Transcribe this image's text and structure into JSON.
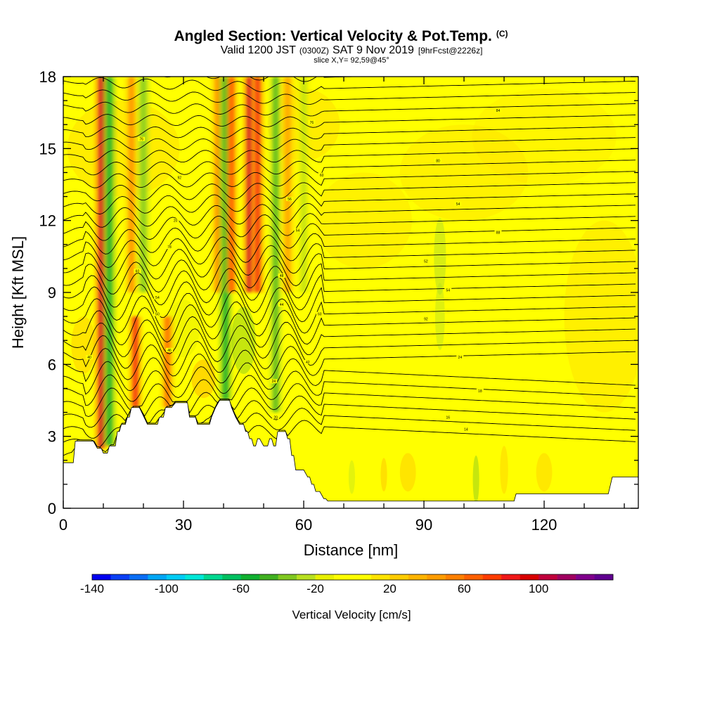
{
  "header": {
    "title": "Angled Section: Vertical Velocity & Pot.Temp.",
    "title_mark": "(C)",
    "valid_a": "Valid 1200 JST",
    "valid_b": "(0300Z)",
    "valid_c": "SAT 9 Nov 2019",
    "valid_d": "[9hrFcst@2226z]",
    "slice": "slice X,Y= 92,59@45°"
  },
  "colors": {
    "background_field": "#ffff00",
    "terrain": "#ffffff",
    "contour": "#000000"
  },
  "chart_data": {
    "type": "heatmap",
    "xlabel": "Distance [nm]",
    "ylabel": "Height [Kft MSL]",
    "xlim": [
      0,
      143.5
    ],
    "ylim": [
      0,
      18
    ],
    "xticks": [
      0,
      30,
      60,
      90,
      120
    ],
    "yticks": [
      0,
      3,
      6,
      9,
      12,
      15,
      18
    ],
    "colorbar": {
      "title": "Vertical Velocity [cm/s]",
      "min": -140,
      "max": 140,
      "step": 10,
      "labels": [
        -140,
        -100,
        -60,
        -20,
        20,
        60,
        100
      ],
      "colors": [
        "#0000f0",
        "#0a3ff5",
        "#0a6ef5",
        "#00a6f5",
        "#00ccf5",
        "#00e8d8",
        "#00d890",
        "#00c060",
        "#10b030",
        "#40b020",
        "#80c820",
        "#b8e020",
        "#e8f000",
        "#ffff00",
        "#ffff00",
        "#ffe400",
        "#ffcc00",
        "#ffb400",
        "#ff9c00",
        "#ff8000",
        "#ff6000",
        "#ff3c00",
        "#f01818",
        "#d80000",
        "#c0003c",
        "#a00060",
        "#80008c",
        "#600090"
      ]
    },
    "terrain_profile": {
      "x": [
        0,
        1,
        2.5,
        3,
        7.5,
        8.5,
        9.5,
        10,
        11,
        11.5,
        12,
        13,
        13.5,
        14,
        14.5,
        14.8,
        15.5,
        16,
        16.5,
        17,
        18.5,
        19,
        21,
        22,
        23.5,
        24,
        25,
        25.5,
        26,
        26.5,
        27,
        28,
        30,
        31,
        31.5,
        32,
        33,
        33.5,
        34,
        36.5,
        37,
        38,
        39,
        40,
        41,
        41.5,
        42,
        43,
        44,
        45,
        45.5,
        46,
        46.5,
        47,
        47.5,
        48,
        48.5,
        49,
        50,
        51,
        51.5,
        52,
        52.5,
        53,
        53.5,
        54,
        54.5,
        55,
        55.5,
        56,
        56.5,
        57,
        57.5,
        58,
        58.5,
        59,
        59.5,
        60,
        61,
        61.5,
        62,
        62.5,
        63,
        64,
        65,
        65.5,
        66,
        66.5,
        67,
        68,
        70,
        80,
        90,
        100,
        112.5,
        113,
        120,
        130,
        136,
        137,
        143.5
      ],
      "height_kft": [
        1.9,
        1.9,
        1.9,
        2.8,
        2.8,
        2.5,
        2.5,
        2.3,
        2.3,
        2.6,
        2.6,
        2.6,
        3.2,
        3.2,
        3.5,
        3.5,
        3.5,
        3.8,
        3.8,
        4.2,
        4.2,
        4.2,
        3.5,
        3.5,
        3.5,
        3.8,
        3.8,
        4.2,
        4.2,
        4.2,
        4.2,
        4.4,
        4.4,
        4.4,
        3.8,
        3.8,
        3.8,
        3.5,
        3.5,
        3.5,
        3.8,
        4.2,
        4.5,
        4.5,
        4.5,
        4.5,
        4.2,
        3.8,
        3.5,
        3.5,
        3.2,
        3.2,
        2.9,
        2.9,
        2.6,
        2.6,
        2.9,
        2.9,
        2.6,
        2.6,
        2.9,
        2.9,
        2.6,
        2.6,
        3.2,
        3.2,
        3.2,
        3.2,
        3.2,
        2.9,
        2.9,
        2.2,
        2.2,
        1.6,
        1.6,
        1.6,
        1.6,
        1.6,
        1.3,
        1.3,
        1.0,
        1.0,
        0.7,
        0.7,
        0.4,
        0.4,
        0.3,
        0.3,
        0.3,
        0.3,
        0.3,
        0.3,
        0.3,
        0.3,
        0.3,
        0.6,
        0.6,
        0.6,
        0.6,
        1.3,
        1.3
      ]
    },
    "updrafts": [
      {
        "x": 9.5,
        "y_from": 0,
        "y_to": 18,
        "w": 100
      },
      {
        "x": 11.5,
        "y_from": 0,
        "y_to": 18,
        "w": -60
      },
      {
        "x": 17,
        "y_from": 9,
        "y_to": 18,
        "w": 50
      },
      {
        "x": 18,
        "y_from": 4,
        "y_to": 8,
        "w": 80
      },
      {
        "x": 20,
        "y_from": 9,
        "y_to": 18,
        "w": -40
      },
      {
        "x": 26,
        "y_from": 4,
        "y_to": 8,
        "w": 60
      },
      {
        "x": 38.5,
        "y_from": 9,
        "y_to": 18,
        "w": 50
      },
      {
        "x": 40.5,
        "y_from": 4,
        "y_to": 18,
        "w": -60
      },
      {
        "x": 42,
        "y_from": 9,
        "y_to": 18,
        "w": 70
      },
      {
        "x": 46.5,
        "y_from": 9,
        "y_to": 18,
        "w": 100
      },
      {
        "x": 48.5,
        "y_from": 9,
        "y_to": 18,
        "w": 80
      },
      {
        "x": 53,
        "y_from": 4,
        "y_to": 18,
        "w": -50
      },
      {
        "x": 56,
        "y_from": 9,
        "y_to": 18,
        "w": 40
      },
      {
        "x": 60,
        "y_from": 9,
        "y_to": 18,
        "w": -30
      }
    ],
    "contour_labels": [
      {
        "x": 19.5,
        "y": 15.4,
        "text": "76"
      },
      {
        "x": 29,
        "y": 13.8,
        "text": "92"
      },
      {
        "x": 28,
        "y": 12,
        "text": "20"
      },
      {
        "x": 26.5,
        "y": 10.9,
        "text": "78"
      },
      {
        "x": 18.5,
        "y": 9.9,
        "text": "60"
      },
      {
        "x": 23.5,
        "y": 8.8,
        "text": "54"
      },
      {
        "x": 23.5,
        "y": 8.1,
        "text": "50"
      },
      {
        "x": 26.5,
        "y": 6.6,
        "text": "46"
      },
      {
        "x": 6.5,
        "y": 6.3,
        "text": "40"
      },
      {
        "x": 62,
        "y": 16.1,
        "text": "76"
      },
      {
        "x": 64.5,
        "y": 13.9,
        "text": "60"
      },
      {
        "x": 56.5,
        "y": 12.9,
        "text": "56"
      },
      {
        "x": 58.5,
        "y": 11.6,
        "text": "54"
      },
      {
        "x": 54.5,
        "y": 9.7,
        "text": "48"
      },
      {
        "x": 54.5,
        "y": 8.5,
        "text": "44"
      },
      {
        "x": 64,
        "y": 8.1,
        "text": "60"
      },
      {
        "x": 61,
        "y": 6.1,
        "text": "42"
      },
      {
        "x": 52.5,
        "y": 5.3,
        "text": "24"
      },
      {
        "x": 53,
        "y": 3.8,
        "text": "20"
      },
      {
        "x": 108.5,
        "y": 16.6,
        "text": "84"
      },
      {
        "x": 93.5,
        "y": 14.5,
        "text": "80"
      },
      {
        "x": 98.5,
        "y": 12.7,
        "text": "54"
      },
      {
        "x": 108.5,
        "y": 11.5,
        "text": "88"
      },
      {
        "x": 90.5,
        "y": 10.3,
        "text": "52"
      },
      {
        "x": 96,
        "y": 9.1,
        "text": "54"
      },
      {
        "x": 90.5,
        "y": 7.9,
        "text": "92"
      },
      {
        "x": 99,
        "y": 6.3,
        "text": "24"
      },
      {
        "x": 104,
        "y": 4.9,
        "text": "18"
      },
      {
        "x": 96,
        "y": 3.8,
        "text": "16"
      },
      {
        "x": 100.5,
        "y": 3.3,
        "text": "14"
      }
    ]
  }
}
